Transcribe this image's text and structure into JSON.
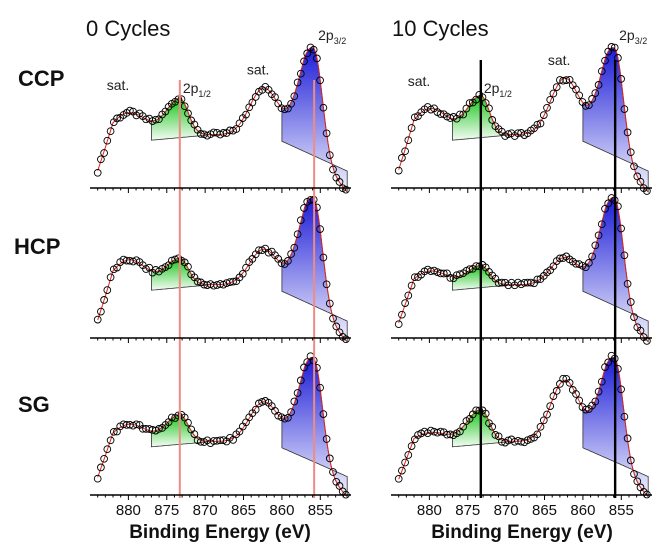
{
  "columns": [
    {
      "title": "0 Cycles",
      "xlabel": "Binding Energy (eV)",
      "ref_line_color": "#f08a84"
    },
    {
      "title": "10 Cycles",
      "xlabel": "Binding Energy (eV)",
      "ref_line_color": "#000000"
    }
  ],
  "rows": [
    "CCP",
    "HCP",
    "SG"
  ],
  "annotations": {
    "sat": "sat.",
    "p12_main": "2p",
    "p12_sub": "1/2",
    "p32_main": "2p",
    "p32_sub": "3/2"
  },
  "colors": {
    "green_fill": "#19c419",
    "blue_fill": "#1c1cd8",
    "fit_line": "#e0241b",
    "envelope": "#333333",
    "marker": "#000000"
  },
  "chart_data": {
    "type": "scatter",
    "grid": false,
    "layout": "3 rows x 2 columns of XPS spectra",
    "xlabel": "Binding Energy (eV)",
    "ylabel": "",
    "x_reversed": true,
    "xlim": [
      885,
      851
    ],
    "xticks": [
      880,
      875,
      870,
      865,
      860,
      855
    ],
    "reference_lines": {
      "2p1/2": 873.3,
      "2p3/2": 855.8
    },
    "panels": [
      {
        "row": "CCP",
        "column": "0 Cycles",
        "peaks": [
          {
            "label": "sat.",
            "x": 879.5,
            "y": 0.55
          },
          {
            "label": "2p1/2",
            "x": 873.3,
            "y": 0.64
          },
          {
            "label": "sat.",
            "x": 862.0,
            "y": 0.66
          },
          {
            "label": "2p3/2",
            "x": 855.8,
            "y": 1.0
          }
        ]
      },
      {
        "row": "CCP",
        "column": "10 Cycles",
        "peaks": [
          {
            "label": "sat.",
            "x": 879.5,
            "y": 0.58
          },
          {
            "label": "2p1/2",
            "x": 873.3,
            "y": 0.66
          },
          {
            "label": "sat.",
            "x": 862.0,
            "y": 0.73
          },
          {
            "label": "2p3/2",
            "x": 855.8,
            "y": 1.0
          }
        ]
      },
      {
        "row": "HCP",
        "column": "0 Cycles",
        "peaks": [
          {
            "label": "sat.",
            "x": 879.5,
            "y": 0.57
          },
          {
            "label": "2p1/2",
            "x": 873.3,
            "y": 0.57
          },
          {
            "label": "sat.",
            "x": 862.0,
            "y": 0.58
          },
          {
            "label": "2p3/2",
            "x": 855.8,
            "y": 1.0
          }
        ]
      },
      {
        "row": "HCP",
        "column": "10 Cycles",
        "peaks": [
          {
            "label": "sat.",
            "x": 879.5,
            "y": 0.49
          },
          {
            "label": "2p1/2",
            "x": 873.3,
            "y": 0.52
          },
          {
            "label": "sat.",
            "x": 862.0,
            "y": 0.52
          },
          {
            "label": "2p3/2",
            "x": 855.8,
            "y": 1.0
          }
        ]
      },
      {
        "row": "SG",
        "column": "0 Cycles",
        "peaks": [
          {
            "label": "sat.",
            "x": 879.5,
            "y": 0.52
          },
          {
            "label": "2p1/2",
            "x": 873.3,
            "y": 0.58
          },
          {
            "label": "sat.",
            "x": 862.0,
            "y": 0.62
          },
          {
            "label": "2p3/2",
            "x": 855.8,
            "y": 1.0
          }
        ]
      },
      {
        "row": "SG",
        "column": "10 Cycles",
        "peaks": [
          {
            "label": "sat.",
            "x": 879.5,
            "y": 0.46
          },
          {
            "label": "2p1/2",
            "x": 873.3,
            "y": 0.62
          },
          {
            "label": "sat.",
            "x": 862.0,
            "y": 0.78
          },
          {
            "label": "2p3/2",
            "x": 855.8,
            "y": 1.0
          }
        ]
      }
    ]
  }
}
